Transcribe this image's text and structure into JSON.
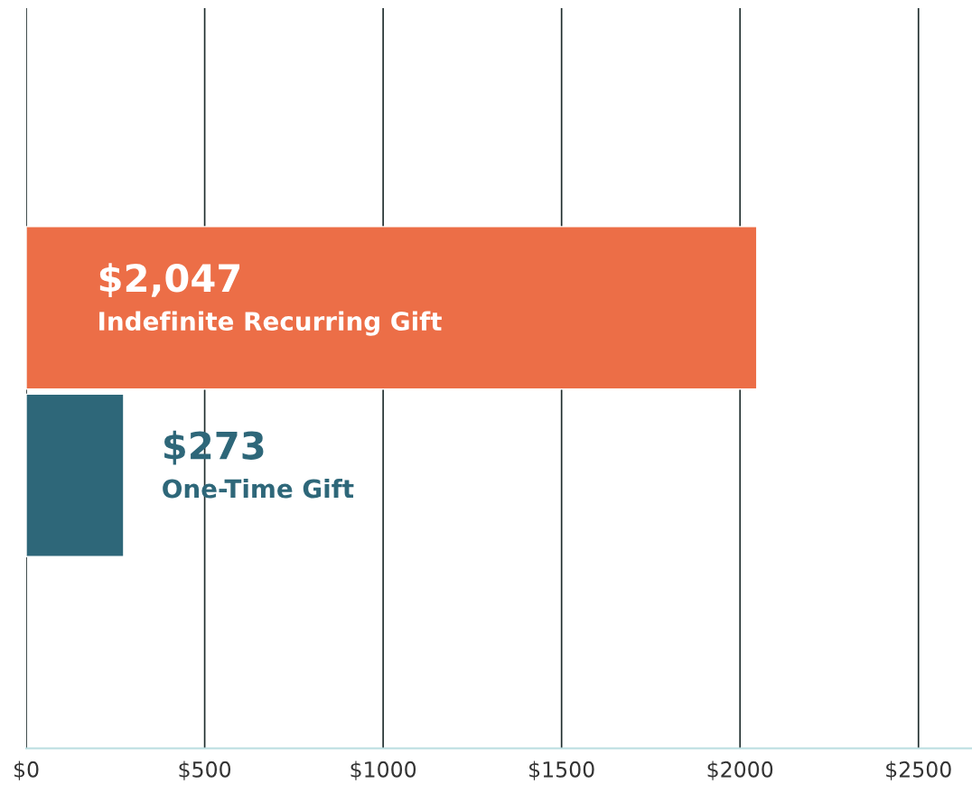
{
  "chart_data": {
    "type": "bar",
    "orientation": "horizontal",
    "categories": [
      "Indefinite Recurring Gift",
      "One-Time Gift"
    ],
    "values": [
      2047,
      273
    ],
    "colors": [
      "#ec6e47",
      "#2e6779"
    ],
    "value_labels": [
      "$2,047",
      "$273"
    ],
    "xlim": [
      0,
      2650
    ],
    "xticks": [
      {
        "value": 0,
        "label": "$0"
      },
      {
        "value": 500,
        "label": "$500"
      },
      {
        "value": 1000,
        "label": "$1000"
      },
      {
        "value": 1500,
        "label": "$1500"
      },
      {
        "value": 2000,
        "label": "$2000"
      },
      {
        "value": 2500,
        "label": "$2500"
      }
    ],
    "grid": "x",
    "legend": false
  }
}
